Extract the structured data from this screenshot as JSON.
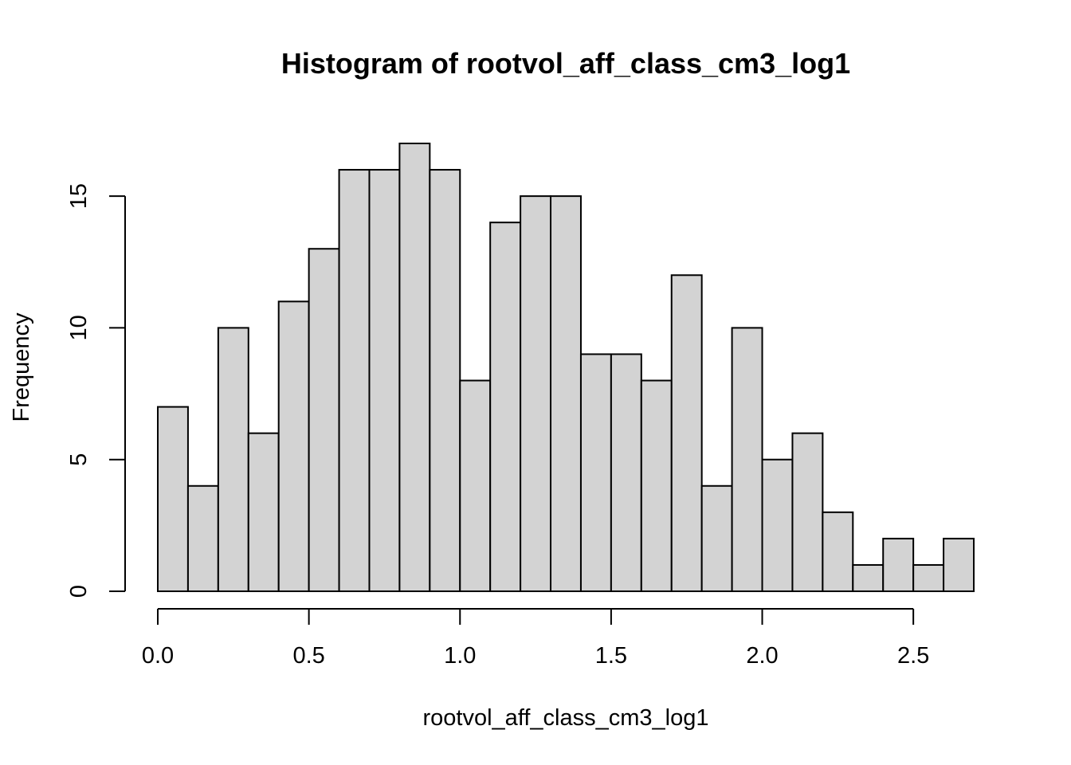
{
  "chart_data": {
    "type": "bar",
    "title": "Histogram of rootvol_aff_class_cm3_log1",
    "xlabel": "rootvol_aff_class_cm3_log1",
    "ylabel": "Frequency",
    "bin_width": 0.1,
    "bin_starts": [
      0.0,
      0.1,
      0.2,
      0.3,
      0.4,
      0.5,
      0.6,
      0.7,
      0.8,
      0.9,
      1.0,
      1.1,
      1.2,
      1.3,
      1.4,
      1.5,
      1.6,
      1.7,
      1.8,
      1.9,
      2.0,
      2.1,
      2.2,
      2.3,
      2.4,
      2.5,
      2.6
    ],
    "values": [
      7,
      4,
      10,
      6,
      11,
      13,
      16,
      16,
      17,
      16,
      8,
      14,
      15,
      15,
      9,
      9,
      8,
      12,
      4,
      10,
      5,
      6,
      3,
      1,
      2,
      1,
      2
    ],
    "xlim": [
      0.0,
      2.7
    ],
    "ylim": [
      0,
      17
    ],
    "x_ticks": [
      {
        "value": 0.0,
        "label": "0.0"
      },
      {
        "value": 0.5,
        "label": "0.5"
      },
      {
        "value": 1.0,
        "label": "1.0"
      },
      {
        "value": 1.5,
        "label": "1.5"
      },
      {
        "value": 2.0,
        "label": "2.0"
      },
      {
        "value": 2.5,
        "label": "2.5"
      }
    ],
    "y_ticks": [
      {
        "value": 0,
        "label": "0"
      },
      {
        "value": 5,
        "label": "5"
      },
      {
        "value": 10,
        "label": "10"
      },
      {
        "value": 15,
        "label": "15"
      }
    ],
    "grid": false,
    "bar_color": "#d3d3d3",
    "edge_color": "#000000"
  }
}
